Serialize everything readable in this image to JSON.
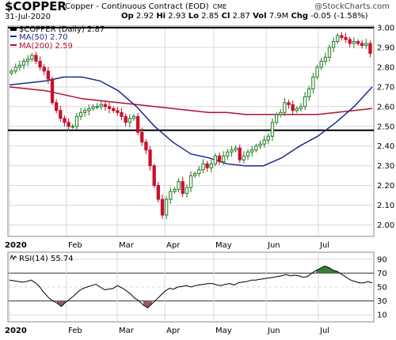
{
  "header": {
    "symbol": "$COPPER",
    "description": "Copper - Continuous Contract (EOD)",
    "exchange": "CME",
    "date": "31-Jul-2020",
    "open_label": "Op",
    "open": "2.92",
    "high_label": "Hi",
    "high": "2.93",
    "low_label": "Lo",
    "low": "2.85",
    "close_label": "Cl",
    "close": "2.87",
    "volume_label": "Vol",
    "volume": "7.9M",
    "change_label": "Chg",
    "change": "-0.05 (-1.58%)",
    "watermark": "@StockCharts.com"
  },
  "colors": {
    "up": "#1f7a1f",
    "down": "#c8102e",
    "ma50": "#1b2a8a",
    "ma200": "#b01030",
    "rsi_line": "#000000",
    "rsi_fill_high": "#3a7d3a",
    "rsi_fill_low": "#9a5a5a",
    "grid": "#d8d8d8",
    "hline": "#000000"
  },
  "legend": {
    "price": "$COPPER (Daily) 2.87",
    "ma50": "MA(50) 2.70",
    "ma200": "MA(200) 2.59",
    "rsi": "RSI(14) 55.74"
  },
  "chart_data": [
    {
      "type": "candlestick",
      "title": "$COPPER (Daily)",
      "ylim": [
        1.95,
        3.0
      ],
      "yticks": [
        "3.00",
        "2.90",
        "2.80",
        "2.70",
        "2.60",
        "2.50",
        "2.40",
        "2.30",
        "2.20",
        "2.10",
        "2.00"
      ],
      "x_labels": [
        "2020",
        "Feb",
        "Mar",
        "Apr",
        "May",
        "Jun",
        "Jul"
      ],
      "horizontal_lines": [
        3.0,
        2.48
      ],
      "closes": [
        2.78,
        2.8,
        2.81,
        2.83,
        2.84,
        2.86,
        2.83,
        2.8,
        2.78,
        2.74,
        2.62,
        2.58,
        2.54,
        2.52,
        2.5,
        2.5,
        2.55,
        2.57,
        2.58,
        2.59,
        2.6,
        2.6,
        2.61,
        2.6,
        2.59,
        2.58,
        2.57,
        2.55,
        2.52,
        2.54,
        2.55,
        2.47,
        2.42,
        2.38,
        2.3,
        2.2,
        2.13,
        2.05,
        2.13,
        2.17,
        2.18,
        2.22,
        2.16,
        2.19,
        2.25,
        2.26,
        2.28,
        2.31,
        2.29,
        2.31,
        2.35,
        2.32,
        2.35,
        2.37,
        2.38,
        2.39,
        2.33,
        2.35,
        2.37,
        2.38,
        2.4,
        2.41,
        2.43,
        2.45,
        2.52,
        2.56,
        2.57,
        2.62,
        2.61,
        2.58,
        2.59,
        2.6,
        2.65,
        2.69,
        2.75,
        2.8,
        2.83,
        2.85,
        2.9,
        2.93,
        2.96,
        2.95,
        2.94,
        2.92,
        2.93,
        2.92,
        2.91,
        2.92,
        2.87
      ],
      "ma50": [
        2.71,
        2.72,
        2.73,
        2.75,
        2.75,
        2.73,
        2.68,
        2.6,
        2.5,
        2.42,
        2.36,
        2.34,
        2.31,
        2.3,
        2.3,
        2.34,
        2.4,
        2.45,
        2.52,
        2.6,
        2.7
      ],
      "ma200": [
        2.7,
        2.69,
        2.68,
        2.66,
        2.64,
        2.63,
        2.62,
        2.61,
        2.6,
        2.59,
        2.58,
        2.57,
        2.57,
        2.56,
        2.56,
        2.56,
        2.56,
        2.56,
        2.57,
        2.58,
        2.59
      ]
    },
    {
      "type": "line",
      "title": "RSI(14)",
      "ylim": [
        0,
        100
      ],
      "yticks": [
        "90",
        "70",
        "50",
        "30",
        "10"
      ],
      "x_labels": [
        "2020",
        "Feb",
        "Mar",
        "Apr",
        "May",
        "Jun",
        "Jul"
      ],
      "overbought": 70,
      "oversold": 30,
      "values": [
        60,
        59,
        58,
        57,
        58,
        60,
        56,
        50,
        42,
        35,
        30,
        27,
        22,
        28,
        33,
        38,
        44,
        48,
        50,
        52,
        54,
        50,
        46,
        47,
        48,
        52,
        49,
        45,
        40,
        34,
        30,
        24,
        20,
        26,
        32,
        38,
        44,
        48,
        47,
        50,
        51,
        52,
        50,
        52,
        53,
        54,
        55,
        55,
        53,
        52,
        54,
        55,
        53,
        56,
        57,
        58,
        60,
        60,
        61,
        62,
        63,
        64,
        65,
        66,
        68,
        66,
        67,
        66,
        64,
        65,
        70,
        74,
        77,
        80,
        78,
        74,
        72,
        68,
        64,
        60,
        58,
        56,
        56,
        58,
        55.74
      ]
    }
  ]
}
